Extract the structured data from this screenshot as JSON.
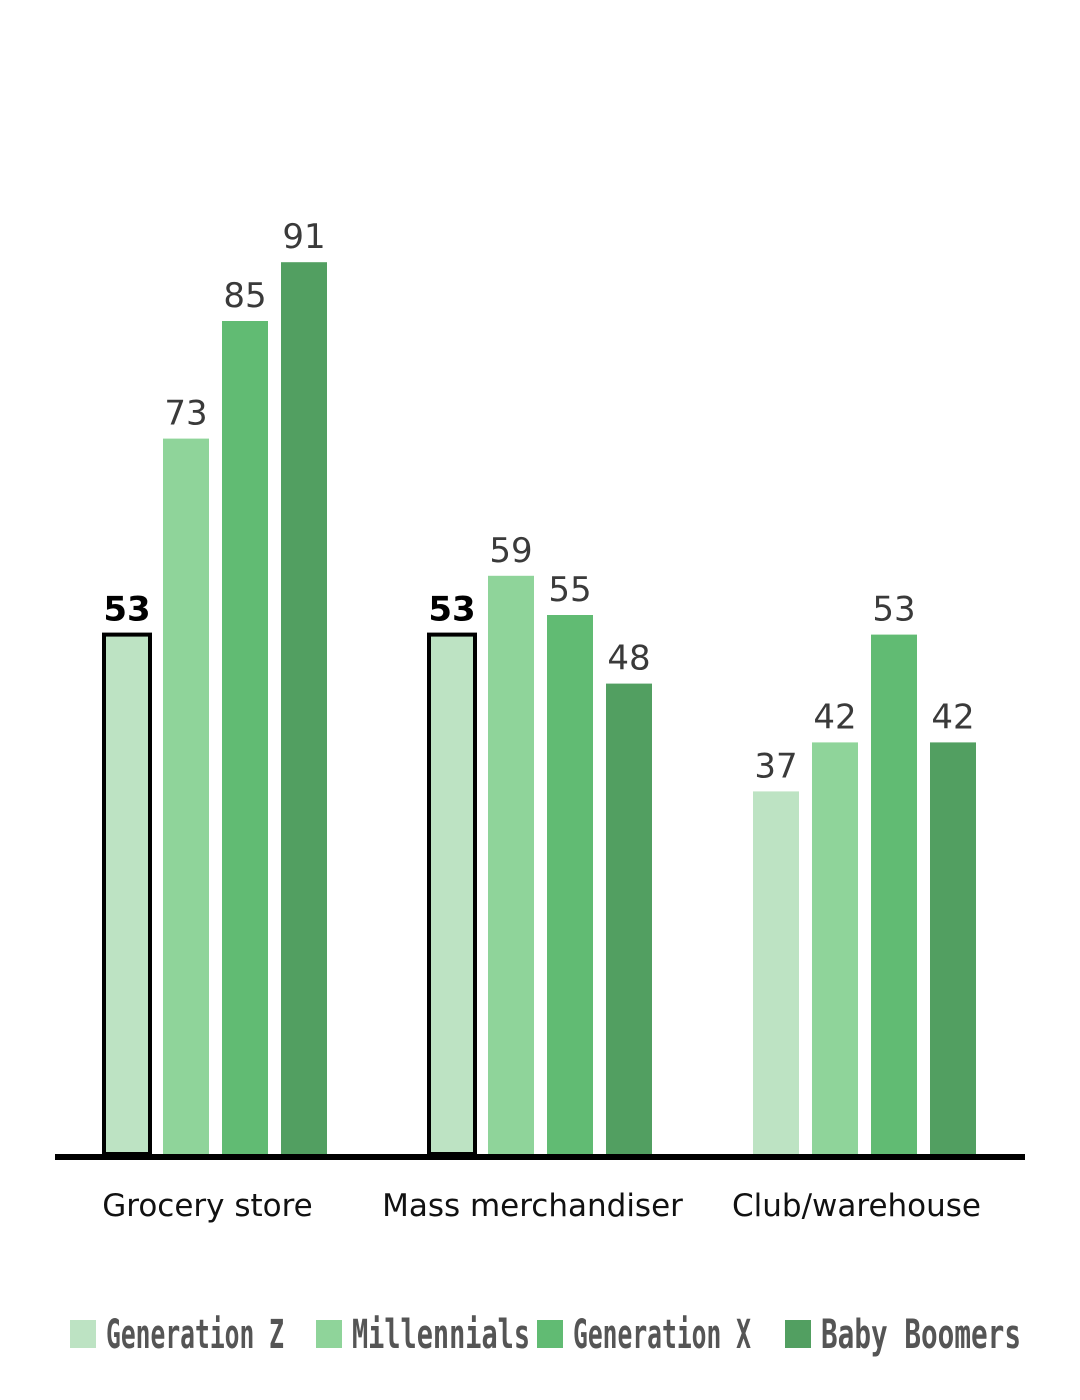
{
  "chart_data": {
    "type": "bar",
    "categories": [
      "Grocery store",
      "Mass merchandiser",
      "Club/warehouse"
    ],
    "series": [
      {
        "name": "Generation Z",
        "values": [
          53,
          53,
          37
        ],
        "color": "#bde3c3"
      },
      {
        "name": "Millennials",
        "values": [
          73,
          59,
          42
        ],
        "color": "#8fd49a"
      },
      {
        "name": "Generation X",
        "values": [
          85,
          55,
          53
        ],
        "color": "#61bb73"
      },
      {
        "name": "Baby Boomers",
        "values": [
          91,
          48,
          42
        ],
        "color": "#529f61"
      }
    ],
    "highlighted_series": "Generation Z",
    "highlighted_categories": [
      "Grocery store",
      "Mass merchandiser"
    ],
    "title": "",
    "xlabel": "",
    "ylabel": "",
    "ylim": [
      0,
      100
    ],
    "grid": false,
    "legend_position": "bottom"
  }
}
